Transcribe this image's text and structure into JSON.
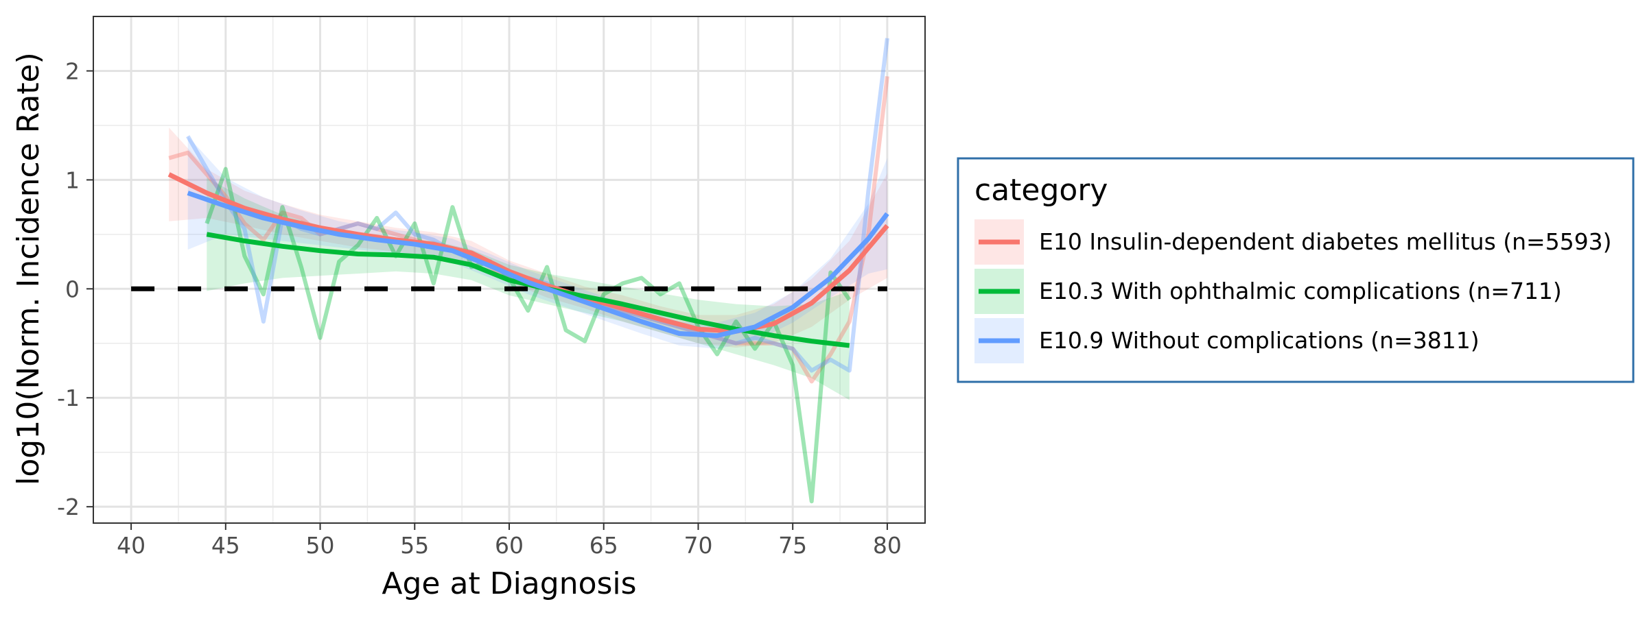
{
  "chart_data": {
    "type": "line",
    "xlabel": "Age at Diagnosis",
    "ylabel": "log10(Norm. Incidence Rate)",
    "xlim": [
      38,
      82
    ],
    "ylim": [
      -2.15,
      2.5
    ],
    "xticks": [
      40,
      45,
      50,
      55,
      60,
      65,
      70,
      75,
      80
    ],
    "xtick_labels": [
      "40",
      "45",
      "50",
      "55",
      "60",
      "65",
      "70",
      "75",
      "80"
    ],
    "yticks": [
      -2,
      -1,
      0,
      1,
      2
    ],
    "ytick_labels": [
      "-2",
      "-1",
      "0",
      "1",
      "2"
    ],
    "grid": true,
    "reference_line": {
      "y": 0,
      "style": "dashed",
      "color": "#000000"
    },
    "legend": {
      "title": "category",
      "position": "right"
    },
    "series": [
      {
        "name": "E10 Insulin-dependent diabetes mellitus (n=5593)",
        "color": "#F8766D",
        "raw": {
          "x": [
            42,
            43,
            44,
            45,
            46,
            47,
            48,
            49,
            50,
            51,
            52,
            53,
            54,
            55,
            56,
            57,
            58,
            59,
            60,
            61,
            62,
            63,
            64,
            65,
            66,
            67,
            68,
            69,
            70,
            71,
            72,
            73,
            74,
            75,
            76,
            77,
            78,
            79,
            80
          ],
          "y": [
            1.2,
            1.25,
            1.05,
            0.85,
            0.6,
            0.45,
            0.7,
            0.65,
            0.5,
            0.55,
            0.6,
            0.55,
            0.5,
            0.45,
            0.4,
            0.35,
            0.3,
            0.2,
            0.1,
            0.05,
            0.0,
            -0.05,
            -0.1,
            -0.15,
            -0.2,
            -0.25,
            -0.3,
            -0.35,
            -0.4,
            -0.45,
            -0.5,
            -0.5,
            -0.5,
            -0.55,
            -0.85,
            -0.6,
            -0.3,
            0.5,
            1.95
          ]
        },
        "smooth": {
          "x": [
            42,
            44,
            46,
            48,
            50,
            52,
            54,
            56,
            58,
            60,
            62,
            64,
            66,
            68,
            70,
            72,
            74,
            76,
            78,
            80
          ],
          "y": [
            1.05,
            0.88,
            0.74,
            0.64,
            0.56,
            0.5,
            0.45,
            0.41,
            0.33,
            0.16,
            0.03,
            -0.08,
            -0.18,
            -0.28,
            -0.37,
            -0.39,
            -0.32,
            -0.13,
            0.17,
            0.58
          ]
        },
        "band": {
          "lower": [
            0.62,
            0.65,
            0.58,
            0.5,
            0.44,
            0.38,
            0.34,
            0.3,
            0.22,
            0.06,
            -0.08,
            -0.18,
            -0.3,
            -0.4,
            -0.5,
            -0.54,
            -0.5,
            -0.35,
            -0.1,
            0.1
          ],
          "upper": [
            1.48,
            1.1,
            0.9,
            0.78,
            0.68,
            0.62,
            0.56,
            0.52,
            0.44,
            0.26,
            0.14,
            0.02,
            -0.06,
            -0.16,
            -0.24,
            -0.24,
            -0.14,
            0.09,
            0.44,
            1.06
          ]
        }
      },
      {
        "name": "E10.3 With ophthalmic complications (n=711)",
        "color": "#00BA38",
        "raw": {
          "x": [
            44,
            45,
            46,
            47,
            48,
            49,
            50,
            51,
            52,
            53,
            54,
            55,
            56,
            57,
            58,
            59,
            60,
            61,
            62,
            63,
            64,
            65,
            66,
            67,
            68,
            69,
            70,
            71,
            72,
            73,
            74,
            75,
            76,
            77,
            78
          ],
          "y": [
            0.6,
            1.1,
            0.3,
            -0.05,
            0.75,
            0.2,
            -0.45,
            0.25,
            0.4,
            0.65,
            0.3,
            0.6,
            0.05,
            0.75,
            0.2,
            0.25,
            0.1,
            -0.2,
            0.2,
            -0.38,
            -0.48,
            -0.05,
            0.05,
            0.1,
            -0.05,
            0.05,
            -0.35,
            -0.6,
            -0.3,
            -0.55,
            -0.3,
            -0.7,
            -1.95,
            0.15,
            -0.1
          ]
        },
        "smooth": {
          "x": [
            44,
            46,
            48,
            50,
            52,
            54,
            56,
            58,
            60,
            62,
            64,
            66,
            68,
            70,
            72,
            74,
            76,
            78
          ],
          "y": [
            0.5,
            0.44,
            0.39,
            0.35,
            0.32,
            0.31,
            0.29,
            0.22,
            0.08,
            0.0,
            -0.07,
            -0.14,
            -0.22,
            -0.3,
            -0.37,
            -0.43,
            -0.48,
            -0.52
          ]
        },
        "band": {
          "lower": [
            -0.02,
            0.05,
            0.1,
            0.12,
            0.14,
            0.16,
            0.14,
            0.08,
            -0.06,
            -0.14,
            -0.22,
            -0.3,
            -0.4,
            -0.5,
            -0.6,
            -0.7,
            -0.82,
            -1.02
          ],
          "upper": [
            1.02,
            0.83,
            0.68,
            0.58,
            0.5,
            0.46,
            0.44,
            0.36,
            0.22,
            0.14,
            0.08,
            0.02,
            -0.04,
            -0.1,
            -0.14,
            -0.16,
            -0.14,
            -0.02
          ]
        }
      },
      {
        "name": "E10.9 Without complications (n=3811)",
        "color": "#619CFF",
        "raw": {
          "x": [
            43,
            44,
            45,
            46,
            47,
            48,
            49,
            50,
            51,
            52,
            53,
            54,
            55,
            56,
            57,
            58,
            59,
            60,
            61,
            62,
            63,
            64,
            65,
            66,
            67,
            68,
            69,
            70,
            71,
            72,
            73,
            74,
            75,
            76,
            77,
            78,
            79,
            80
          ],
          "y": [
            1.4,
            1.1,
            0.8,
            0.55,
            -0.3,
            0.65,
            0.55,
            0.5,
            0.55,
            0.6,
            0.55,
            0.7,
            0.5,
            0.45,
            0.35,
            0.3,
            0.25,
            0.1,
            0.1,
            0.05,
            -0.05,
            -0.1,
            -0.15,
            -0.2,
            -0.25,
            -0.3,
            -0.35,
            -0.4,
            -0.45,
            -0.5,
            -0.45,
            -0.5,
            -0.55,
            -0.75,
            -0.65,
            -0.75,
            0.9,
            2.3
          ]
        },
        "smooth": {
          "x": [
            43,
            45,
            47,
            49,
            51,
            53,
            55,
            57,
            59,
            61,
            63,
            65,
            67,
            69,
            71,
            73,
            75,
            77,
            79,
            80
          ],
          "y": [
            0.88,
            0.76,
            0.65,
            0.57,
            0.5,
            0.45,
            0.41,
            0.35,
            0.21,
            0.06,
            -0.06,
            -0.18,
            -0.3,
            -0.41,
            -0.43,
            -0.35,
            -0.17,
            0.1,
            0.46,
            0.69
          ]
        },
        "band": {
          "lower": [
            0.36,
            0.5,
            0.46,
            0.42,
            0.38,
            0.34,
            0.3,
            0.24,
            0.1,
            -0.05,
            -0.17,
            -0.29,
            -0.41,
            -0.52,
            -0.55,
            -0.48,
            -0.31,
            -0.08,
            0.14,
            0.18
          ],
          "upper": [
            1.4,
            1.02,
            0.84,
            0.72,
            0.62,
            0.56,
            0.52,
            0.46,
            0.32,
            0.17,
            0.05,
            -0.07,
            -0.19,
            -0.3,
            -0.31,
            -0.22,
            -0.03,
            0.28,
            0.78,
            1.2
          ]
        }
      }
    ]
  }
}
